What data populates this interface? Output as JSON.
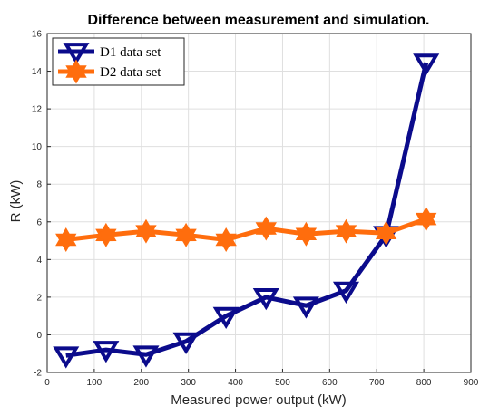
{
  "chart_data": {
    "type": "line",
    "title": "Difference between measurement and simulation.",
    "xlabel": "Measured power output (kW)",
    "ylabel": "R (kW)",
    "xlim": [
      0,
      900
    ],
    "ylim": [
      -2,
      16
    ],
    "xticks": [
      0,
      100,
      200,
      300,
      400,
      500,
      600,
      700,
      800,
      900
    ],
    "yticks": [
      -2,
      0,
      2,
      4,
      6,
      8,
      10,
      12,
      14,
      16
    ],
    "xtick_labels": [
      "0",
      "100",
      "200",
      "300",
      "400",
      "500",
      "600",
      "700",
      "800",
      "900"
    ],
    "ytick_labels": [
      "-2",
      "0",
      "2",
      "4",
      "6",
      "8",
      "10",
      "12",
      "14",
      "16"
    ],
    "grid": true,
    "legend_position": "top-left",
    "series": [
      {
        "name": "D1 data set",
        "color": "#0b0b8c",
        "marker": "triangle-down",
        "x": [
          40,
          125,
          210,
          295,
          380,
          465,
          550,
          635,
          720,
          805
        ],
        "y": [
          -1.1,
          -0.8,
          -1.05,
          -0.35,
          1.0,
          2.0,
          1.55,
          2.35,
          5.3,
          14.45
        ]
      },
      {
        "name": "D2 data set",
        "color": "#ff6d0d",
        "marker": "hexagram",
        "x": [
          40,
          125,
          210,
          295,
          380,
          465,
          550,
          635,
          720,
          805
        ],
        "y": [
          5.05,
          5.3,
          5.5,
          5.3,
          5.05,
          5.65,
          5.35,
          5.5,
          5.4,
          6.15
        ]
      }
    ]
  }
}
